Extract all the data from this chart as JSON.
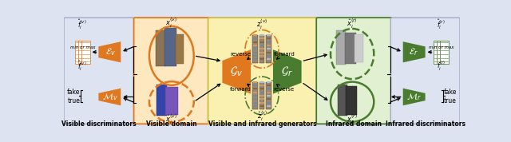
{
  "bg_color": "#dde3f0",
  "orange": "#E07820",
  "green": "#4a7c2f",
  "orange_domain_bg": "#fde8c0",
  "green_domain_bg": "#e0f0d0",
  "yellow_center_bg": "#faf0b0",
  "title_visible_disc": "Visible discriminators",
  "title_visible_domain": "Visible domain",
  "title_center": "Visible and infrared generators",
  "title_infrared_domain": "Infrared domain",
  "title_infrared_disc": "Infrared discriminators",
  "fig_width": 6.4,
  "fig_height": 1.78
}
